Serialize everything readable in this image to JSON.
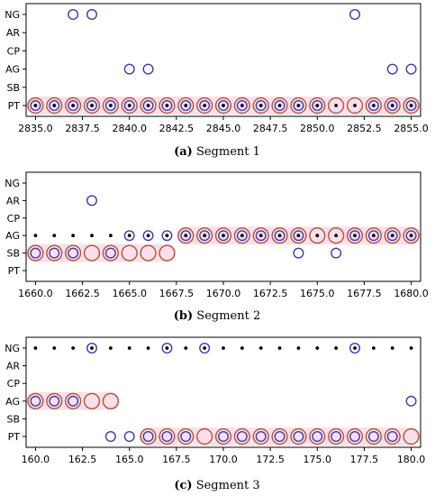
{
  "style": {
    "outer_circle_color": "#b5522e",
    "inner_circle_color": "#3b3bb0",
    "highlight_color": "#f5c6de",
    "dot_color": "#000000"
  },
  "chart_data": [
    {
      "type": "scatter",
      "caption_label": "(a)",
      "caption_text": "Segment 1",
      "categories": [
        "NG",
        "AR",
        "CP",
        "AG",
        "SB",
        "PT"
      ],
      "xlim": [
        2834.5,
        2855.5
      ],
      "xticks": [
        2835.0,
        2837.5,
        2840.0,
        2842.5,
        2845.0,
        2847.5,
        2850.0,
        2852.5,
        2855.0
      ],
      "xtick_labels": [
        "2835.0",
        "2837.5",
        "2840.0",
        "2842.5",
        "2845.0",
        "2847.5",
        "2850.0",
        "2852.5",
        "2855.0"
      ],
      "grid": false,
      "highlight_bands": [
        {
          "category": "PT",
          "x": [
            2835,
            2855
          ]
        }
      ],
      "series": [
        {
          "marker": "dot",
          "points": [
            {
              "x": 2835,
              "y": "PT"
            },
            {
              "x": 2836,
              "y": "PT"
            },
            {
              "x": 2837,
              "y": "PT"
            },
            {
              "x": 2838,
              "y": "PT"
            },
            {
              "x": 2839,
              "y": "PT"
            },
            {
              "x": 2840,
              "y": "PT"
            },
            {
              "x": 2841,
              "y": "PT"
            },
            {
              "x": 2842,
              "y": "PT"
            },
            {
              "x": 2843,
              "y": "PT"
            },
            {
              "x": 2844,
              "y": "PT"
            },
            {
              "x": 2845,
              "y": "PT"
            },
            {
              "x": 2846,
              "y": "PT"
            },
            {
              "x": 2847,
              "y": "PT"
            },
            {
              "x": 2848,
              "y": "PT"
            },
            {
              "x": 2849,
              "y": "PT"
            },
            {
              "x": 2850,
              "y": "PT"
            },
            {
              "x": 2851,
              "y": "PT"
            },
            {
              "x": 2852,
              "y": "PT"
            },
            {
              "x": 2853,
              "y": "PT"
            },
            {
              "x": 2854,
              "y": "PT"
            },
            {
              "x": 2855,
              "y": "PT"
            }
          ]
        },
        {
          "marker": "inner-circle",
          "points": [
            {
              "x": 2837,
              "y": "NG"
            },
            {
              "x": 2838,
              "y": "NG"
            },
            {
              "x": 2852,
              "y": "NG"
            },
            {
              "x": 2840,
              "y": "AG"
            },
            {
              "x": 2841,
              "y": "AG"
            },
            {
              "x": 2854,
              "y": "AG"
            },
            {
              "x": 2855,
              "y": "AG"
            },
            {
              "x": 2835,
              "y": "PT"
            },
            {
              "x": 2836,
              "y": "PT"
            },
            {
              "x": 2837,
              "y": "PT"
            },
            {
              "x": 2838,
              "y": "PT"
            },
            {
              "x": 2839,
              "y": "PT"
            },
            {
              "x": 2840,
              "y": "PT"
            },
            {
              "x": 2841,
              "y": "PT"
            },
            {
              "x": 2842,
              "y": "PT"
            },
            {
              "x": 2843,
              "y": "PT"
            },
            {
              "x": 2844,
              "y": "PT"
            },
            {
              "x": 2845,
              "y": "PT"
            },
            {
              "x": 2846,
              "y": "PT"
            },
            {
              "x": 2847,
              "y": "PT"
            },
            {
              "x": 2848,
              "y": "PT"
            },
            {
              "x": 2849,
              "y": "PT"
            },
            {
              "x": 2850,
              "y": "PT"
            },
            {
              "x": 2853,
              "y": "PT"
            },
            {
              "x": 2854,
              "y": "PT"
            },
            {
              "x": 2855,
              "y": "PT"
            }
          ]
        },
        {
          "marker": "outer-circle",
          "points": [
            {
              "x": 2835,
              "y": "PT"
            },
            {
              "x": 2836,
              "y": "PT"
            },
            {
              "x": 2837,
              "y": "PT"
            },
            {
              "x": 2838,
              "y": "PT"
            },
            {
              "x": 2839,
              "y": "PT"
            },
            {
              "x": 2840,
              "y": "PT"
            },
            {
              "x": 2841,
              "y": "PT"
            },
            {
              "x": 2842,
              "y": "PT"
            },
            {
              "x": 2843,
              "y": "PT"
            },
            {
              "x": 2844,
              "y": "PT"
            },
            {
              "x": 2845,
              "y": "PT"
            },
            {
              "x": 2846,
              "y": "PT"
            },
            {
              "x": 2847,
              "y": "PT"
            },
            {
              "x": 2848,
              "y": "PT"
            },
            {
              "x": 2849,
              "y": "PT"
            },
            {
              "x": 2850,
              "y": "PT"
            },
            {
              "x": 2851,
              "y": "PT"
            },
            {
              "x": 2852,
              "y": "PT"
            },
            {
              "x": 2853,
              "y": "PT"
            },
            {
              "x": 2854,
              "y": "PT"
            },
            {
              "x": 2855,
              "y": "PT"
            }
          ]
        }
      ]
    },
    {
      "type": "scatter",
      "caption_label": "(b)",
      "caption_text": "Segment 2",
      "categories": [
        "NG",
        "AR",
        "CP",
        "AG",
        "SB",
        "PT"
      ],
      "xlim": [
        1659.5,
        1680.5
      ],
      "xticks": [
        1660.0,
        1662.5,
        1665.0,
        1667.5,
        1670.0,
        1672.5,
        1675.0,
        1677.5,
        1680.0
      ],
      "xtick_labels": [
        "1660.0",
        "1662.5",
        "1665.0",
        "1667.5",
        "1670.0",
        "1672.5",
        "1675.0",
        "1677.5",
        "1680.0"
      ],
      "grid": false,
      "highlight_bands": [
        {
          "category": "AG",
          "x": [
            1668,
            1680
          ]
        },
        {
          "category": "SB",
          "x": [
            1660,
            1667
          ]
        }
      ],
      "series": [
        {
          "marker": "dot",
          "points": [
            {
              "x": 1660,
              "y": "AG"
            },
            {
              "x": 1661,
              "y": "AG"
            },
            {
              "x": 1662,
              "y": "AG"
            },
            {
              "x": 1663,
              "y": "AG"
            },
            {
              "x": 1664,
              "y": "AG"
            },
            {
              "x": 1665,
              "y": "AG"
            },
            {
              "x": 1666,
              "y": "AG"
            },
            {
              "x": 1667,
              "y": "AG"
            },
            {
              "x": 1668,
              "y": "AG"
            },
            {
              "x": 1669,
              "y": "AG"
            },
            {
              "x": 1670,
              "y": "AG"
            },
            {
              "x": 1671,
              "y": "AG"
            },
            {
              "x": 1672,
              "y": "AG"
            },
            {
              "x": 1673,
              "y": "AG"
            },
            {
              "x": 1674,
              "y": "AG"
            },
            {
              "x": 1675,
              "y": "AG"
            },
            {
              "x": 1676,
              "y": "AG"
            },
            {
              "x": 1677,
              "y": "AG"
            },
            {
              "x": 1678,
              "y": "AG"
            },
            {
              "x": 1679,
              "y": "AG"
            },
            {
              "x": 1680,
              "y": "AG"
            }
          ]
        },
        {
          "marker": "inner-circle",
          "points": [
            {
              "x": 1663,
              "y": "AR"
            },
            {
              "x": 1665,
              "y": "AG"
            },
            {
              "x": 1666,
              "y": "AG"
            },
            {
              "x": 1667,
              "y": "AG"
            },
            {
              "x": 1668,
              "y": "AG"
            },
            {
              "x": 1669,
              "y": "AG"
            },
            {
              "x": 1670,
              "y": "AG"
            },
            {
              "x": 1671,
              "y": "AG"
            },
            {
              "x": 1672,
              "y": "AG"
            },
            {
              "x": 1673,
              "y": "AG"
            },
            {
              "x": 1674,
              "y": "AG"
            },
            {
              "x": 1677,
              "y": "AG"
            },
            {
              "x": 1678,
              "y": "AG"
            },
            {
              "x": 1679,
              "y": "AG"
            },
            {
              "x": 1680,
              "y": "AG"
            },
            {
              "x": 1660,
              "y": "SB"
            },
            {
              "x": 1661,
              "y": "SB"
            },
            {
              "x": 1662,
              "y": "SB"
            },
            {
              "x": 1664,
              "y": "SB"
            },
            {
              "x": 1674,
              "y": "SB"
            },
            {
              "x": 1676,
              "y": "SB"
            }
          ]
        },
        {
          "marker": "outer-circle",
          "points": [
            {
              "x": 1668,
              "y": "AG"
            },
            {
              "x": 1669,
              "y": "AG"
            },
            {
              "x": 1670,
              "y": "AG"
            },
            {
              "x": 1671,
              "y": "AG"
            },
            {
              "x": 1672,
              "y": "AG"
            },
            {
              "x": 1673,
              "y": "AG"
            },
            {
              "x": 1674,
              "y": "AG"
            },
            {
              "x": 1675,
              "y": "AG"
            },
            {
              "x": 1676,
              "y": "AG"
            },
            {
              "x": 1677,
              "y": "AG"
            },
            {
              "x": 1678,
              "y": "AG"
            },
            {
              "x": 1679,
              "y": "AG"
            },
            {
              "x": 1680,
              "y": "AG"
            },
            {
              "x": 1660,
              "y": "SB"
            },
            {
              "x": 1661,
              "y": "SB"
            },
            {
              "x": 1662,
              "y": "SB"
            },
            {
              "x": 1663,
              "y": "SB"
            },
            {
              "x": 1664,
              "y": "SB"
            },
            {
              "x": 1665,
              "y": "SB"
            },
            {
              "x": 1666,
              "y": "SB"
            },
            {
              "x": 1667,
              "y": "SB"
            }
          ]
        }
      ]
    },
    {
      "type": "scatter",
      "caption_label": "(c)",
      "caption_text": "Segment 3",
      "categories": [
        "NG",
        "AR",
        "CP",
        "AG",
        "SB",
        "PT"
      ],
      "xlim": [
        159.5,
        180.5
      ],
      "xticks": [
        160.0,
        162.5,
        165.0,
        167.5,
        170.0,
        172.5,
        175.0,
        177.5,
        180.0
      ],
      "xtick_labels": [
        "160.0",
        "162.5",
        "165.0",
        "167.5",
        "170.0",
        "172.5",
        "175.0",
        "177.5",
        "180.0"
      ],
      "grid": false,
      "highlight_bands": [
        {
          "category": "AG",
          "x": [
            160,
            164
          ]
        },
        {
          "category": "PT",
          "x": [
            166,
            180
          ]
        }
      ],
      "series": [
        {
          "marker": "dot",
          "points": [
            {
              "x": 160,
              "y": "NG"
            },
            {
              "x": 161,
              "y": "NG"
            },
            {
              "x": 162,
              "y": "NG"
            },
            {
              "x": 163,
              "y": "NG"
            },
            {
              "x": 164,
              "y": "NG"
            },
            {
              "x": 165,
              "y": "NG"
            },
            {
              "x": 166,
              "y": "NG"
            },
            {
              "x": 167,
              "y": "NG"
            },
            {
              "x": 168,
              "y": "NG"
            },
            {
              "x": 169,
              "y": "NG"
            },
            {
              "x": 170,
              "y": "NG"
            },
            {
              "x": 171,
              "y": "NG"
            },
            {
              "x": 172,
              "y": "NG"
            },
            {
              "x": 173,
              "y": "NG"
            },
            {
              "x": 174,
              "y": "NG"
            },
            {
              "x": 175,
              "y": "NG"
            },
            {
              "x": 176,
              "y": "NG"
            },
            {
              "x": 177,
              "y": "NG"
            },
            {
              "x": 178,
              "y": "NG"
            },
            {
              "x": 179,
              "y": "NG"
            },
            {
              "x": 180,
              "y": "NG"
            }
          ]
        },
        {
          "marker": "inner-circle",
          "points": [
            {
              "x": 163,
              "y": "NG"
            },
            {
              "x": 167,
              "y": "NG"
            },
            {
              "x": 169,
              "y": "NG"
            },
            {
              "x": 177,
              "y": "NG"
            },
            {
              "x": 160,
              "y": "AG"
            },
            {
              "x": 161,
              "y": "AG"
            },
            {
              "x": 162,
              "y": "AG"
            },
            {
              "x": 180,
              "y": "AG"
            },
            {
              "x": 164,
              "y": "PT"
            },
            {
              "x": 165,
              "y": "PT"
            },
            {
              "x": 166,
              "y": "PT"
            },
            {
              "x": 167,
              "y": "PT"
            },
            {
              "x": 168,
              "y": "PT"
            },
            {
              "x": 170,
              "y": "PT"
            },
            {
              "x": 171,
              "y": "PT"
            },
            {
              "x": 172,
              "y": "PT"
            },
            {
              "x": 173,
              "y": "PT"
            },
            {
              "x": 174,
              "y": "PT"
            },
            {
              "x": 175,
              "y": "PT"
            },
            {
              "x": 176,
              "y": "PT"
            },
            {
              "x": 177,
              "y": "PT"
            },
            {
              "x": 178,
              "y": "PT"
            },
            {
              "x": 179,
              "y": "PT"
            }
          ]
        },
        {
          "marker": "outer-circle",
          "points": [
            {
              "x": 160,
              "y": "AG"
            },
            {
              "x": 161,
              "y": "AG"
            },
            {
              "x": 162,
              "y": "AG"
            },
            {
              "x": 163,
              "y": "AG"
            },
            {
              "x": 164,
              "y": "AG"
            },
            {
              "x": 166,
              "y": "PT"
            },
            {
              "x": 167,
              "y": "PT"
            },
            {
              "x": 168,
              "y": "PT"
            },
            {
              "x": 169,
              "y": "PT"
            },
            {
              "x": 170,
              "y": "PT"
            },
            {
              "x": 171,
              "y": "PT"
            },
            {
              "x": 172,
              "y": "PT"
            },
            {
              "x": 173,
              "y": "PT"
            },
            {
              "x": 174,
              "y": "PT"
            },
            {
              "x": 175,
              "y": "PT"
            },
            {
              "x": 176,
              "y": "PT"
            },
            {
              "x": 177,
              "y": "PT"
            },
            {
              "x": 178,
              "y": "PT"
            },
            {
              "x": 179,
              "y": "PT"
            },
            {
              "x": 180,
              "y": "PT"
            }
          ]
        }
      ]
    }
  ]
}
